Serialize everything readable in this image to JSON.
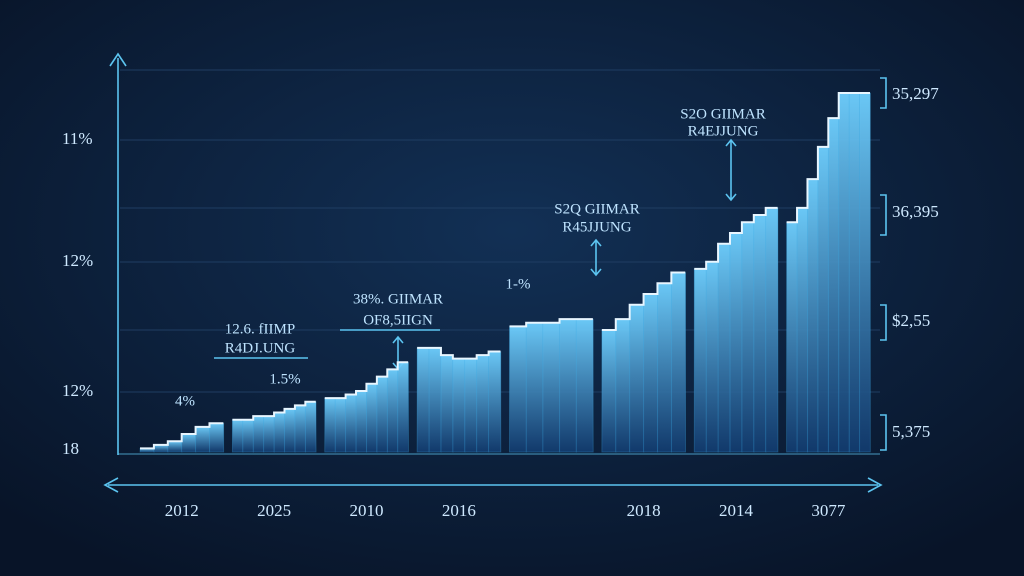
{
  "chart_data": {
    "type": "bar",
    "categories": [
      "2012",
      "2025",
      "2010",
      "2016",
      null,
      "2018",
      "2014",
      "3077"
    ],
    "groups": [
      [
        1,
        2,
        3,
        5,
        7,
        8
      ],
      [
        9,
        9,
        10,
        10,
        11,
        12,
        13,
        14
      ],
      [
        15,
        15,
        16,
        17,
        19,
        21,
        23,
        25
      ],
      [
        29,
        29,
        27,
        26,
        26,
        27,
        28
      ],
      [
        35,
        36,
        36,
        37,
        37
      ],
      [
        34,
        37,
        41,
        44,
        47,
        50
      ],
      [
        51,
        53,
        58,
        61,
        64,
        66,
        68
      ],
      [
        64,
        68,
        76,
        85,
        93,
        100,
        100,
        100
      ]
    ],
    "color": "#3aa6e0",
    "ylim": [
      0,
      100
    ],
    "left_labels": [
      "11%",
      "12%",
      "12%",
      "18"
    ],
    "right_labels": [
      "35,297",
      "36,395",
      "$2,55",
      "5,375"
    ],
    "annotations": [
      "4%",
      "1.5%",
      "12.6. fIIMP",
      "R4DJ.UNG",
      "38%. GIIMAR",
      "OF8,5IIGN",
      "1-%",
      "S2Q GIIMAR",
      "R45JJUNG",
      "S2O GIIMAR",
      "R4EJJUNG"
    ]
  }
}
